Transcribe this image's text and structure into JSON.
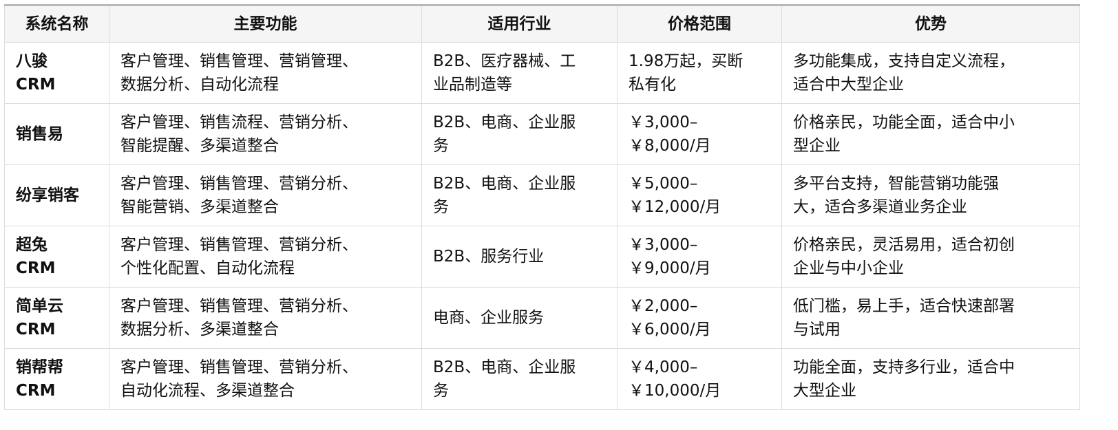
{
  "headers": [
    "系统名称",
    "主要功能",
    "适用行业",
    "价格范围",
    "优势"
  ],
  "rows": [
    {
      "name": [
        "八骏",
        "CRM"
      ],
      "features": [
        "客户管理、销售管理、营销管理、",
        "数据分析、自动化流程"
      ],
      "industry": [
        "B2B、医疗器械、工",
        "业品制造等"
      ],
      "price": [
        "1.98万起，买断",
        "私有化"
      ],
      "advantage": [
        "多功能集成，支持自定义流程，",
        "适合中大型企业"
      ]
    },
    {
      "name": [
        "销售易"
      ],
      "features": [
        "客户管理、销售流程、营销分析、",
        "智能提醒、多渠道整合"
      ],
      "industry": [
        "B2B、电商、企业服",
        "务"
      ],
      "price": [
        "￥3,000–",
        "￥8,000/月"
      ],
      "advantage": [
        "价格亲民，功能全面，适合中小",
        "型企业"
      ]
    },
    {
      "name": [
        "纷享销客"
      ],
      "features": [
        "客户管理、销售管理、营销分析、",
        "智能营销、多渠道整合"
      ],
      "industry": [
        "B2B、电商、企业服",
        "务"
      ],
      "price": [
        "￥5,000–",
        "￥12,000/月"
      ],
      "advantage": [
        "多平台支持，智能营销功能强",
        "大，适合多渠道业务企业"
      ]
    },
    {
      "name": [
        "超兔",
        "CRM"
      ],
      "features": [
        "客户管理、销售管理、营销分析、",
        "个性化配置、自动化流程"
      ],
      "industry": [
        "B2B、服务行业"
      ],
      "price": [
        "￥3,000–",
        "￥9,000/月"
      ],
      "advantage": [
        "价格亲民，灵活易用，适合初创",
        "企业与中小企业"
      ]
    },
    {
      "name": [
        "简单云",
        "CRM"
      ],
      "features": [
        "客户管理、销售管理、营销分析、",
        "数据分析、多渠道整合"
      ],
      "industry": [
        "电商、企业服务"
      ],
      "price": [
        "￥2,000–",
        "￥6,000/月"
      ],
      "advantage": [
        "低门槛，易上手，适合快速部署",
        "与试用"
      ]
    },
    {
      "name": [
        "销帮帮",
        "CRM"
      ],
      "features": [
        "客户管理、销售管理、营销分析、",
        "自动化流程、多渠道整合"
      ],
      "industry": [
        "B2B、电商、企业服",
        "务"
      ],
      "price": [
        "￥4,000–",
        "￥10,000/月"
      ],
      "advantage": [
        "功能全面，支持多行业，适合中",
        "大型企业"
      ]
    }
  ]
}
